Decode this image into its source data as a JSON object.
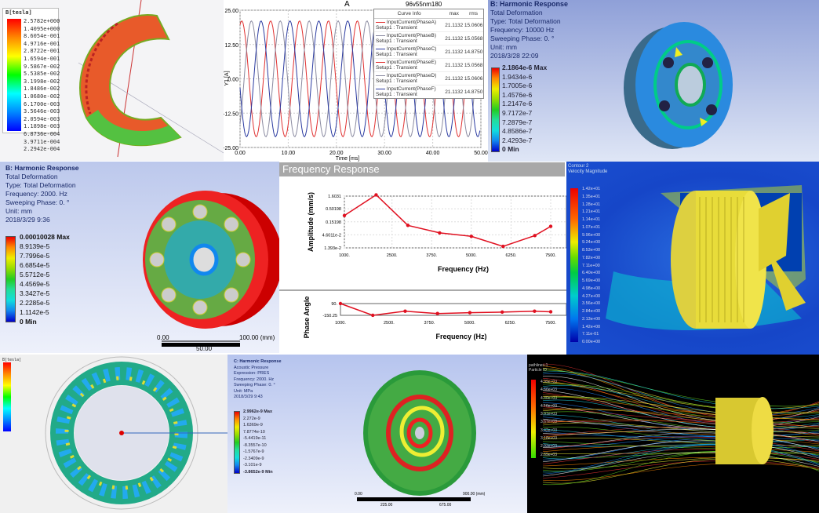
{
  "panel_tesla": {
    "legend_title": "B[tesla]",
    "legend_values": [
      "2.5782e+000",
      "1.4095e+000",
      "8.6054e-001",
      "4.9716e-001",
      "2.8722e-001",
      "1.6594e-001",
      "9.5867e-002",
      "5.5385e-002",
      "3.1998e-002",
      "1.8486e-002",
      "1.0680e-002",
      "6.1700e-003",
      "3.5646e-003",
      "2.0594e-003",
      "1.1898e-003",
      "6.8736e-004",
      "3.9711e-004",
      "2.2942e-004"
    ]
  },
  "panel_current": {
    "chart_data": {
      "type": "line",
      "title": "A",
      "project_label": "96v55nm180",
      "xlabel": "Time [ms]",
      "ylabel": "Y1 [A]",
      "xlim": [
        0,
        50
      ],
      "ylim": [
        -25,
        25
      ],
      "x_ticks": [
        "0.00",
        "10.00",
        "20.00",
        "30.00",
        "40.00",
        "50.00"
      ],
      "y_ticks": [
        "25.00",
        "12.50",
        "0.00",
        "-12.50",
        "-25.00"
      ],
      "grid": true,
      "amplitude": 21.1132,
      "period_ms": 6,
      "legend_headers": [
        "Curve Info",
        "max",
        "rms"
      ],
      "series": [
        {
          "name": "InputCurrent(PhaseA)",
          "sub": "Setup1 : Transient",
          "max": "21.1132",
          "rms": "15.0606",
          "color": "#e03030",
          "phase_deg": 0
        },
        {
          "name": "InputCurrent(PhaseB)",
          "sub": "Setup1 : Transient",
          "max": "21.1132",
          "rms": "15.0568",
          "color": "#8a8aa0",
          "phase_deg": 120
        },
        {
          "name": "InputCurrent(PhaseC)",
          "sub": "Setup1 : Transient",
          "max": "21.1132",
          "rms": "14.8750",
          "color": "#2a3aa0",
          "phase_deg": 240
        },
        {
          "name": "InputCurrent(PhaseE)",
          "sub": "Setup1 : Transient",
          "max": "21.1132",
          "rms": "15.0568",
          "color": "#e03030",
          "phase_deg": 0
        },
        {
          "name": "InputCurrent(PhaseD)",
          "sub": "Setup1 : Transient",
          "max": "21.1132",
          "rms": "15.0606",
          "color": "#8a8aa0",
          "phase_deg": 120
        },
        {
          "name": "InputCurrent(PhaseF)",
          "sub": "Setup1 : Transient",
          "max": "21.1132",
          "rms": "14.8750",
          "color": "#2a3aa0",
          "phase_deg": 240
        }
      ]
    }
  },
  "panel_harmonic_top": {
    "title": "B: Harmonic Response",
    "lines": [
      "Total Deformation",
      "Type: Total Deformation",
      "Frequency: 10000 Hz",
      "Sweeping Phase: 0. °",
      "Unit: mm",
      "2018/3/28 22:09"
    ],
    "legend_values": [
      "2.1864e-6 Max",
      "1.9434e-6",
      "1.7005e-6",
      "1.4576e-6",
      "1.2147e-6",
      "9.7172e-7",
      "7.2879e-7",
      "4.8586e-7",
      "2.4293e-7",
      "0 Min"
    ]
  },
  "panel_harmonic_mid": {
    "title": "B: Harmonic Response",
    "lines": [
      "Total Deformation",
      "Type: Total Deformation",
      "Frequency: 2000. Hz",
      "Sweeping Phase: 0. °",
      "Unit: mm",
      "2018/3/29 9:36"
    ],
    "legend_values": [
      "0.00010028 Max",
      "8.9139e-5",
      "7.7996e-5",
      "6.6854e-5",
      "5.5712e-5",
      "4.4569e-5",
      "3.3427e-5",
      "2.2285e-5",
      "1.1142e-5",
      "0 Min"
    ],
    "scale_labels": [
      "0.00",
      "100.00 (mm)",
      "50.00"
    ]
  },
  "panel_freq": {
    "title": "Frequency Response",
    "chart_data": [
      {
        "type": "line",
        "ylabel": "Amplitude (mm/s)",
        "xlabel": "Frequency (Hz)",
        "y_scale": "log",
        "ylim": [
          0.01393,
          1.6031
        ],
        "xlim": [
          1000,
          7500
        ],
        "x_ticks": [
          "1000.",
          "2500.",
          "3750.",
          "5000.",
          "6250.",
          "7500."
        ],
        "x_tick_values": [
          1000,
          2500,
          3750,
          5000,
          6250,
          7500
        ],
        "y_ticks": [
          "1.6031",
          "0.50198",
          "0.15198",
          "4.6011e-2",
          "1.393e-2"
        ],
        "y_tick_values": [
          1.6031,
          0.50198,
          0.15198,
          0.046011,
          0.01393
        ],
        "grid": true,
        "color": "#e01020",
        "x": [
          1000,
          2000,
          3000,
          4000,
          5000,
          6000,
          7000,
          7500
        ],
        "y": [
          0.27,
          1.8,
          0.11,
          0.055,
          0.04,
          0.016,
          0.043,
          0.1
        ]
      },
      {
        "type": "line",
        "ylabel": "Phase Angle",
        "xlabel": "Frequency (Hz)",
        "ylim": [
          -150.25,
          90
        ],
        "xlim": [
          1000,
          7500
        ],
        "x_ticks": [
          "1000.",
          "2500.",
          "3750.",
          "5000.",
          "6250.",
          "7500."
        ],
        "x_tick_values": [
          1000,
          2500,
          3750,
          5000,
          6250,
          7500
        ],
        "y_ticks": [
          "90.",
          "-150.25"
        ],
        "y_tick_values": [
          90,
          -150.25
        ],
        "color": "#e01020",
        "x": [
          1000,
          2000,
          3000,
          4000,
          5000,
          6000,
          7000,
          7500
        ],
        "y": [
          90,
          -150,
          -66,
          -114,
          -96,
          -84,
          -66,
          -78
        ]
      }
    ]
  },
  "panel_cfd": {
    "title": "Contour 2",
    "subtitle": "Velocity Magnitude",
    "legend_values": [
      "1.42e+01",
      "1.35e+01",
      "1.28e+01",
      "1.21e+01",
      "1.14e+01",
      "1.07e+01",
      "9.96e+00",
      "9.24e+00",
      "8.53e+00",
      "7.82e+00",
      "7.11e+00",
      "6.40e+00",
      "5.69e+00",
      "4.98e+00",
      "4.27e+00",
      "3.56e+00",
      "2.84e+00",
      "2.13e+00",
      "1.42e+00",
      "7.11e-01",
      "0.00e+00"
    ]
  },
  "panel_ring": {
    "legend_title": "B[tesla]"
  },
  "panel_acoustic": {
    "title": "C: Harmonic Response",
    "lines": [
      "Acoustic Pressure",
      "Expression: PRES",
      "Frequency: 2000. Hz",
      "Sweeping Phase: 0. °",
      "Unit: MPa",
      "2018/3/29 9:43"
    ],
    "legend_values": [
      "2.9962e-9 Max",
      "2.272e-9",
      "1.6369e-9",
      "7.8774e-10",
      "-5.4419e-11",
      "-8.3557e-10",
      "-1.5767e-9",
      "-2.3409e-9",
      "-3.101e-9",
      "-3.8652e-9 Min"
    ],
    "scale_labels": [
      "0.00",
      "900.00 (mm)",
      "225.00",
      "675.00"
    ]
  },
  "panel_streamlines": {
    "title": "pathlines-1",
    "subtitle": "Particle ID",
    "legend_values": [
      "4.99e+03",
      "4.66e+03",
      "4.40e+03",
      "4.16e+03",
      "3.91e+03",
      "3.67e+03",
      "3.42e+03",
      "3.18e+03",
      "2.93e+03",
      "2.69e+03"
    ]
  }
}
